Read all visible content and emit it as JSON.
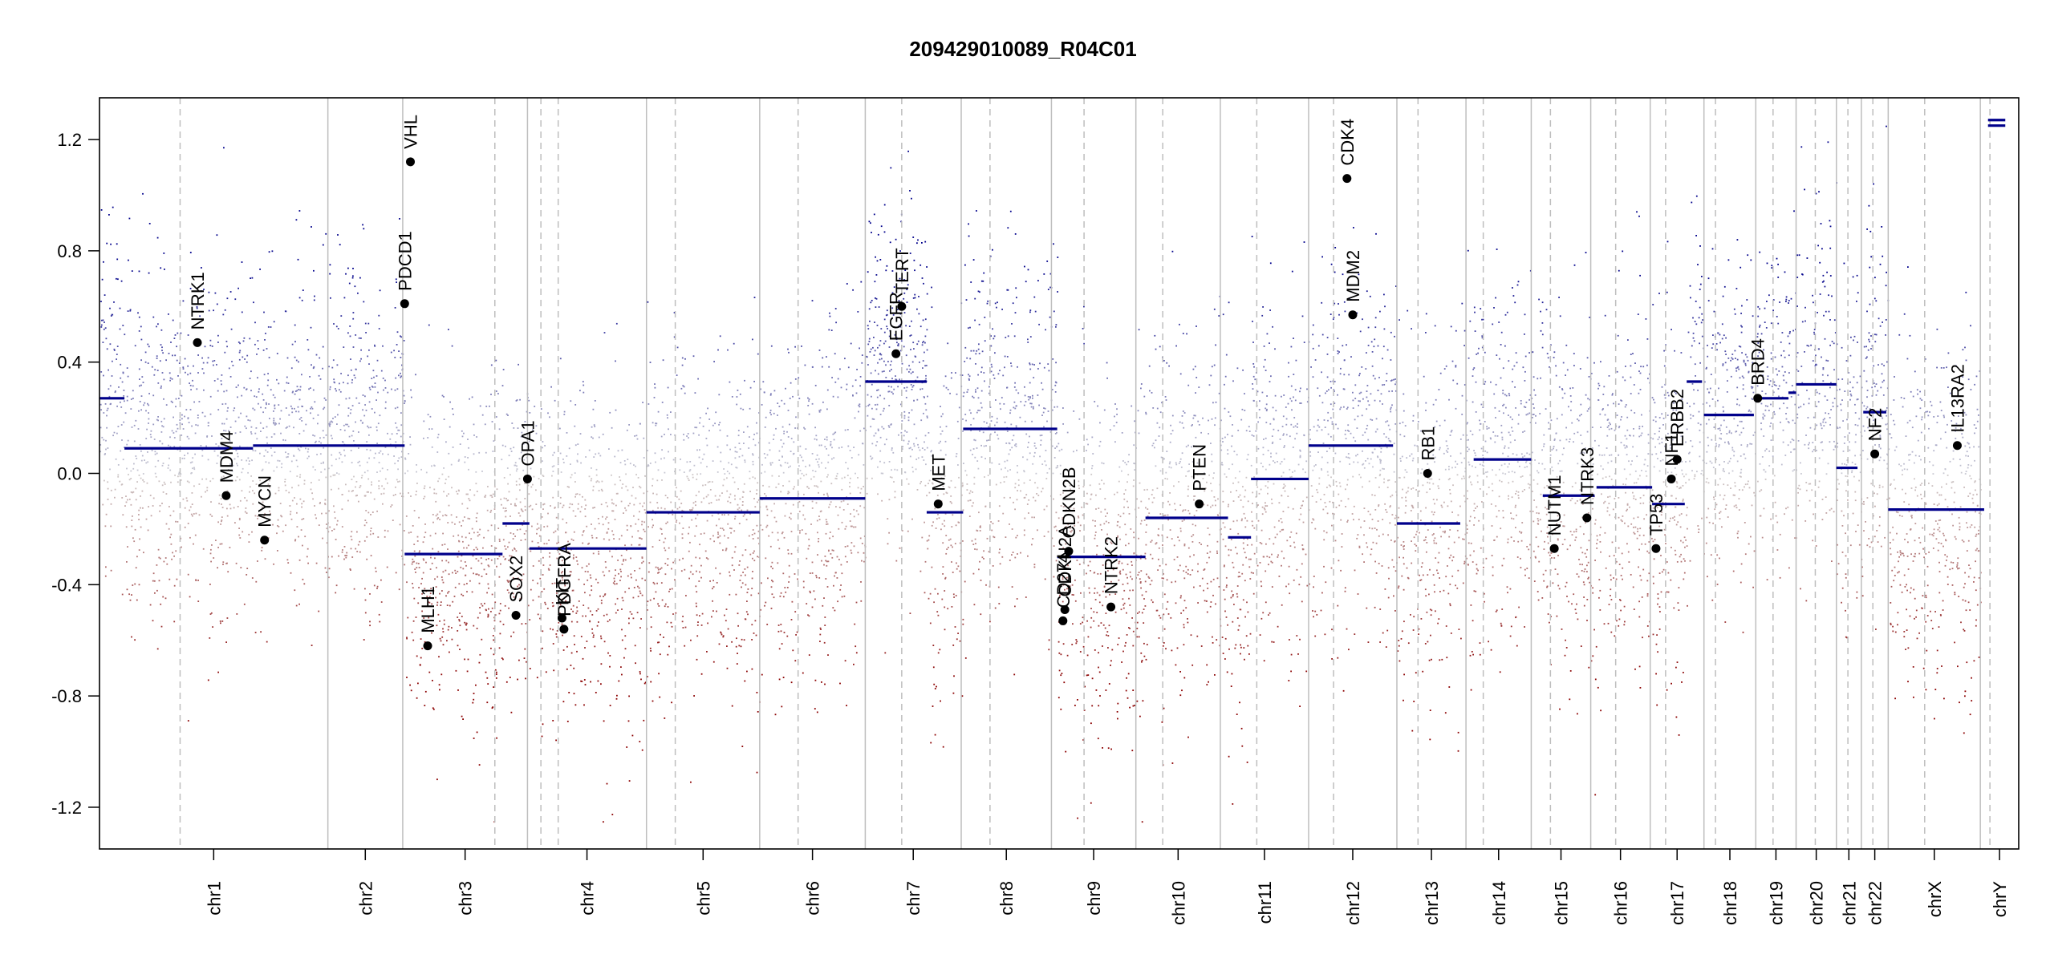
{
  "chart_data": {
    "type": "scatter",
    "title": "209429010089_R04C01",
    "xlabel": "",
    "ylabel": "",
    "ylim": [
      -1.35,
      1.35
    ],
    "clip_range": [
      -1.25,
      1.25
    ],
    "yticks": [
      -1.2,
      -0.8,
      -0.4,
      0.0,
      0.4,
      0.8,
      1.2
    ],
    "ytick_labels": [
      "-1.2",
      "-0.8",
      "-0.4",
      "0.0",
      "0.4",
      "0.8",
      "1.2"
    ],
    "grid": false,
    "colors": {
      "gain": "#00008b",
      "loss": "#8b0000",
      "neutral": "#c8c8c8",
      "segment": "#00008b",
      "gene_dot": "#000000",
      "chrom_border": "#bebebe",
      "centromere": "#bebebe"
    },
    "chromosomes": [
      {
        "name": "chr1",
        "start": 0.0,
        "end": 0.119,
        "cen": 0.042,
        "label": "chr1"
      },
      {
        "name": "chr2",
        "start": 0.119,
        "end": 0.158,
        "cen": 0.111,
        "label": "chr2"
      },
      {
        "name": "chr3",
        "start": 0.158,
        "end": 0.223,
        "cen": 0.048,
        "label": "chr3"
      },
      {
        "name": "chr4",
        "start": 0.223,
        "end": 0.285,
        "cen": 0.016,
        "label": "chr4"
      },
      {
        "name": "chr5",
        "start": 0.285,
        "end": 0.344,
        "cen": 0.015,
        "label": "chr5"
      },
      {
        "name": "chr6",
        "start": 0.344,
        "end": 0.399,
        "cen": 0.02,
        "label": "chr6"
      },
      {
        "name": "chr7",
        "start": 0.399,
        "end": 0.449,
        "cen": 0.019,
        "label": "chr7"
      },
      {
        "name": "chr8",
        "start": 0.449,
        "end": 0.496,
        "cen": 0.015,
        "label": "chr8"
      },
      {
        "name": "chr9",
        "start": 0.496,
        "end": 0.54,
        "cen": 0.017,
        "label": "chr9"
      },
      {
        "name": "chr10",
        "start": 0.54,
        "end": 0.584,
        "cen": 0.014,
        "label": "chr10"
      },
      {
        "name": "chr11",
        "start": 0.584,
        "end": 0.63,
        "cen": 0.019,
        "label": "chr11"
      },
      {
        "name": "chr12",
        "start": 0.63,
        "end": 0.676,
        "cen": 0.013,
        "label": "chr12"
      },
      {
        "name": "chr13",
        "start": 0.676,
        "end": 0.712,
        "cen": 0.011,
        "label": "chr13"
      },
      {
        "name": "chr14",
        "start": 0.712,
        "end": 0.746,
        "cen": 0.009,
        "label": "chr14"
      },
      {
        "name": "chr15",
        "start": 0.746,
        "end": 0.777,
        "cen": 0.01,
        "label": "chr15"
      },
      {
        "name": "chr16",
        "start": 0.777,
        "end": 0.808,
        "cen": 0.013,
        "label": "chr16"
      },
      {
        "name": "chr17",
        "start": 0.808,
        "end": 0.836,
        "cen": 0.008,
        "label": "chr17"
      },
      {
        "name": "chr18",
        "start": 0.836,
        "end": 0.863,
        "cen": 0.006,
        "label": "chr18"
      },
      {
        "name": "chr19",
        "start": 0.863,
        "end": 0.884,
        "cen": 0.009,
        "label": "chr19"
      },
      {
        "name": "chr20",
        "start": 0.884,
        "end": 0.905,
        "cen": 0.01,
        "label": "chr20"
      },
      {
        "name": "chr21",
        "start": 0.905,
        "end": 0.918,
        "cen": 0.006,
        "label": "chr21"
      },
      {
        "name": "chr22",
        "start": 0.918,
        "end": 0.932,
        "cen": 0.006,
        "label": "chr22"
      },
      {
        "name": "chrX",
        "start": 0.932,
        "end": 0.98,
        "cen": 0.019,
        "label": "chrX"
      },
      {
        "name": "chrY",
        "start": 0.98,
        "end": 1.0,
        "cen": 0.005,
        "label": "chrY"
      }
    ],
    "segments": [
      {
        "x0": 0.0,
        "x1": 0.013,
        "y": 0.27
      },
      {
        "x0": 0.013,
        "x1": 0.08,
        "y": 0.09
      },
      {
        "x0": 0.08,
        "x1": 0.159,
        "y": 0.1
      },
      {
        "x0": 0.159,
        "x1": 0.21,
        "y": -0.29
      },
      {
        "x0": 0.21,
        "x1": 0.224,
        "y": -0.18
      },
      {
        "x0": 0.224,
        "x1": 0.285,
        "y": -0.27
      },
      {
        "x0": 0.285,
        "x1": 0.344,
        "y": -0.14
      },
      {
        "x0": 0.344,
        "x1": 0.399,
        "y": -0.09
      },
      {
        "x0": 0.399,
        "x1": 0.431,
        "y": 0.33
      },
      {
        "x0": 0.431,
        "x1": 0.45,
        "y": -0.14
      },
      {
        "x0": 0.45,
        "x1": 0.499,
        "y": 0.16
      },
      {
        "x0": 0.499,
        "x1": 0.545,
        "y": -0.3
      },
      {
        "x0": 0.545,
        "x1": 0.588,
        "y": -0.16
      },
      {
        "x0": 0.588,
        "x1": 0.6,
        "y": -0.23
      },
      {
        "x0": 0.6,
        "x1": 0.63,
        "y": -0.02
      },
      {
        "x0": 0.63,
        "x1": 0.674,
        "y": 0.1
      },
      {
        "x0": 0.676,
        "x1": 0.709,
        "y": -0.18
      },
      {
        "x0": 0.716,
        "x1": 0.746,
        "y": 0.05
      },
      {
        "x0": 0.752,
        "x1": 0.779,
        "y": -0.08
      },
      {
        "x0": 0.78,
        "x1": 0.809,
        "y": -0.05
      },
      {
        "x0": 0.809,
        "x1": 0.826,
        "y": -0.11
      },
      {
        "x0": 0.827,
        "x1": 0.835,
        "y": 0.33
      },
      {
        "x0": 0.836,
        "x1": 0.862,
        "y": 0.21
      },
      {
        "x0": 0.863,
        "x1": 0.88,
        "y": 0.27
      },
      {
        "x0": 0.88,
        "x1": 0.884,
        "y": 0.29
      },
      {
        "x0": 0.884,
        "x1": 0.905,
        "y": 0.32
      },
      {
        "x0": 0.905,
        "x1": 0.916,
        "y": 0.02
      },
      {
        "x0": 0.919,
        "x1": 0.931,
        "y": 0.22
      },
      {
        "x0": 0.932,
        "x1": 0.982,
        "y": -0.13
      },
      {
        "x0": 0.984,
        "x1": 0.993,
        "y": 1.25
      },
      {
        "x0": 0.984,
        "x1": 0.993,
        "y": 1.27
      }
    ],
    "genes": [
      {
        "name": "NTRK1",
        "x": 0.051,
        "y": 0.47
      },
      {
        "name": "MDM4",
        "x": 0.066,
        "y": -0.08
      },
      {
        "name": "MYCN",
        "x": 0.086,
        "y": -0.24
      },
      {
        "name": "PDCD1",
        "x": 0.159,
        "y": 0.61
      },
      {
        "name": "VHL",
        "x": 0.162,
        "y": 1.12
      },
      {
        "name": "MLH1",
        "x": 0.171,
        "y": -0.62
      },
      {
        "name": "SOX2",
        "x": 0.217,
        "y": -0.51
      },
      {
        "name": "OPA1",
        "x": 0.223,
        "y": -0.02
      },
      {
        "name": "KIT",
        "x": 0.241,
        "y": -0.52
      },
      {
        "name": "PDGFRA",
        "x": 0.242,
        "y": -0.56
      },
      {
        "name": "EGFR",
        "x": 0.415,
        "y": 0.43
      },
      {
        "name": "TERT",
        "x": 0.418,
        "y": 0.6
      },
      {
        "name": "MET",
        "x": 0.437,
        "y": -0.11
      },
      {
        "name": "CD274",
        "x": 0.502,
        "y": -0.53
      },
      {
        "name": "CDKN2A",
        "x": 0.503,
        "y": -0.49
      },
      {
        "name": "CDKN2B",
        "x": 0.505,
        "y": -0.28
      },
      {
        "name": "NTRK2",
        "x": 0.527,
        "y": -0.48
      },
      {
        "name": "PTEN",
        "x": 0.573,
        "y": -0.11
      },
      {
        "name": "MDM2",
        "x": 0.653,
        "y": 0.57
      },
      {
        "name": "CDK4",
        "x": 0.65,
        "y": 1.06
      },
      {
        "name": "RB1",
        "x": 0.692,
        "y": 0.0
      },
      {
        "name": "NUTM1",
        "x": 0.758,
        "y": -0.27
      },
      {
        "name": "NTRK3",
        "x": 0.775,
        "y": -0.16
      },
      {
        "name": "TP53",
        "x": 0.811,
        "y": -0.27
      },
      {
        "name": "NF1",
        "x": 0.819,
        "y": -0.02
      },
      {
        "name": "ERBB2",
        "x": 0.822,
        "y": 0.05
      },
      {
        "name": "BRD4",
        "x": 0.864,
        "y": 0.27
      },
      {
        "name": "NF2",
        "x": 0.925,
        "y": 0.07
      },
      {
        "name": "IL13RA2",
        "x": 0.968,
        "y": 0.1
      }
    ]
  }
}
